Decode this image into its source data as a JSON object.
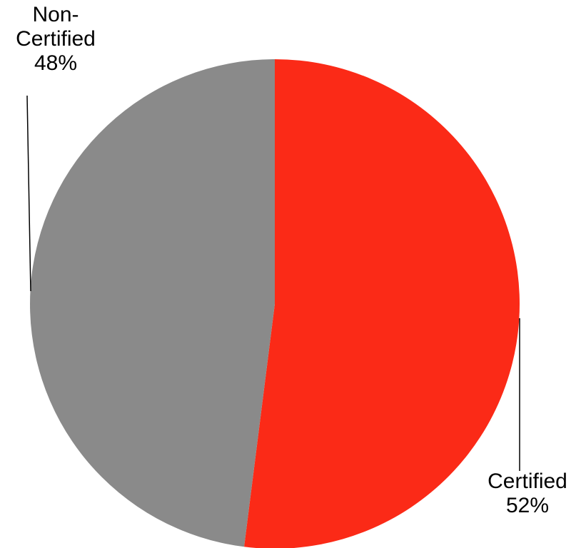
{
  "chart_data": {
    "type": "pie",
    "start_angle_deg": 0,
    "direction": "clockwise",
    "slices": [
      {
        "label": "Certified",
        "percent_label": "52%",
        "value": 52,
        "color": "#fb2a17"
      },
      {
        "label": "Non-Certified",
        "percent_label": "48%",
        "value": 48,
        "color": "#8a8a8a"
      }
    ],
    "label_lines": {
      "noncert_line_1": "Non-",
      "noncert_line_2": "Certified",
      "cert_line_1": "Certified"
    },
    "legend": "none"
  }
}
